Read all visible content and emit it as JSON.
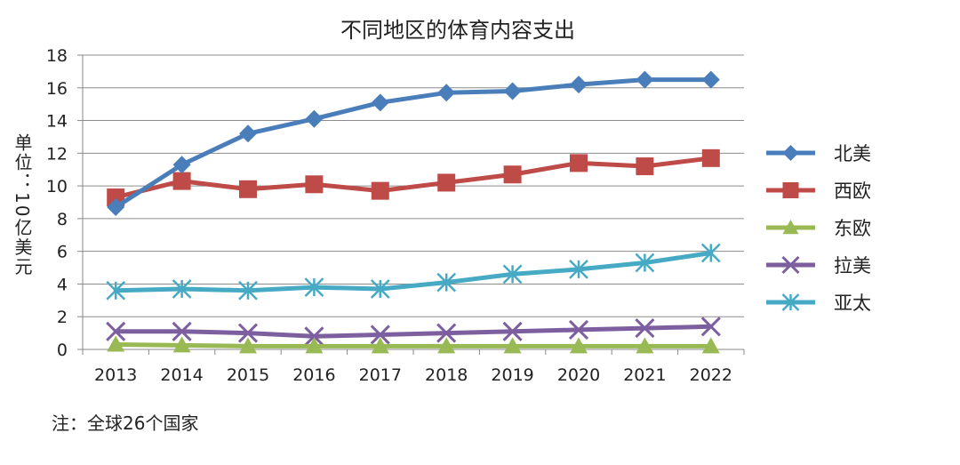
{
  "chart_data": {
    "type": "line",
    "title": "不同地区的体育内容支出",
    "xlabel": "",
    "ylabel": "单位：10亿美元",
    "categories": [
      "2013",
      "2014",
      "2015",
      "2016",
      "2017",
      "2018",
      "2019",
      "2020",
      "2021",
      "2022"
    ],
    "ylim": [
      0,
      18
    ],
    "yticks": [
      0,
      2,
      4,
      6,
      8,
      10,
      12,
      14,
      16,
      18
    ],
    "grid": true,
    "legend_position": "right",
    "series": [
      {
        "name": "北美",
        "color": "#4a7ebb",
        "marker": "diamond",
        "values": [
          8.7,
          11.3,
          13.2,
          14.1,
          15.1,
          15.7,
          15.8,
          16.2,
          16.5,
          16.5
        ]
      },
      {
        "name": "西欧",
        "color": "#be4b48",
        "marker": "square",
        "values": [
          9.3,
          10.3,
          9.8,
          10.1,
          9.7,
          10.2,
          10.7,
          11.4,
          11.2,
          11.7
        ]
      },
      {
        "name": "东欧",
        "color": "#98b954",
        "marker": "triangle",
        "values": [
          0.3,
          0.25,
          0.2,
          0.2,
          0.2,
          0.2,
          0.2,
          0.2,
          0.2,
          0.2
        ]
      },
      {
        "name": "拉美",
        "color": "#7d5fa0",
        "marker": "x",
        "values": [
          1.1,
          1.1,
          1.0,
          0.8,
          0.9,
          1.0,
          1.1,
          1.2,
          1.3,
          1.4
        ]
      },
      {
        "name": "亚太",
        "color": "#46aac5",
        "marker": "star",
        "values": [
          3.6,
          3.7,
          3.6,
          3.8,
          3.7,
          4.1,
          4.6,
          4.9,
          5.3,
          5.9
        ]
      }
    ]
  },
  "note": "注：全球26个国家",
  "ylabel_parts": {
    "top": "单位：10亿美元"
  }
}
